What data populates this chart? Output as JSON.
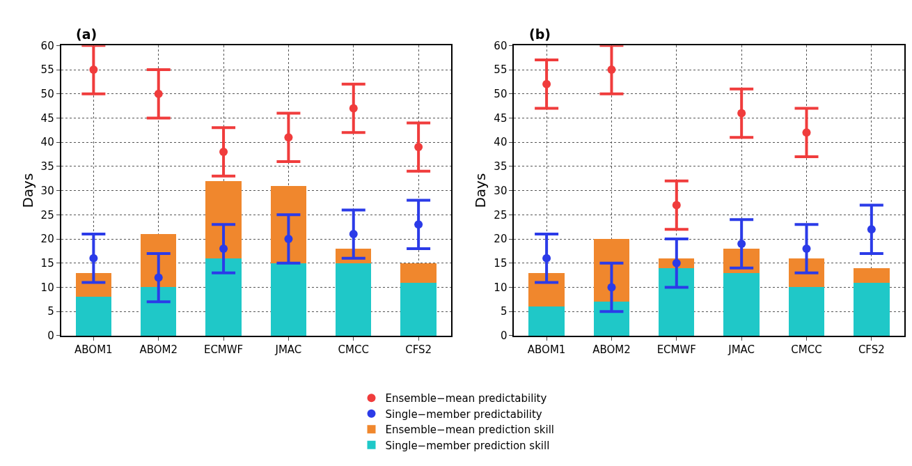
{
  "chart_data": [
    {
      "type": "bar",
      "title": "(a)",
      "ylabel": "Days",
      "categories": [
        "ABOM1",
        "ABOM2",
        "ECMWF",
        "JMAC",
        "CMCC",
        "CFS2"
      ],
      "stacked": true,
      "ylim": [
        0,
        60
      ],
      "yticks": [
        0,
        5,
        10,
        15,
        20,
        25,
        30,
        35,
        40,
        45,
        50,
        55,
        60
      ],
      "grid": true,
      "legend": "bottom",
      "series": [
        {
          "name": "Single−member prediction skill",
          "color": "#1fc8c8",
          "values": [
            8,
            10,
            16,
            15,
            15,
            11
          ]
        },
        {
          "name": "Ensemble−mean prediction skill",
          "color": "#f0872d",
          "values": [
            5,
            11,
            16,
            16,
            3,
            4
          ]
        },
        {
          "name": "Single−member predictability",
          "color": "#2b3be8",
          "type": "scatter",
          "marker": "circle",
          "values": [
            16,
            12,
            18,
            20,
            21,
            23
          ],
          "errors": [
            5,
            5,
            5,
            5,
            5,
            5
          ]
        },
        {
          "name": "Ensemble−mean predictability",
          "color": "#f03c3c",
          "type": "scatter",
          "marker": "circle",
          "values": [
            55,
            50,
            38,
            41,
            47,
            39
          ],
          "errors": [
            5,
            5,
            5,
            5,
            5,
            5
          ]
        }
      ]
    },
    {
      "type": "bar",
      "title": "(b)",
      "ylabel": "Days",
      "categories": [
        "ABOM1",
        "ABOM2",
        "ECMWF",
        "JMAC",
        "CMCC",
        "CFS2"
      ],
      "stacked": true,
      "ylim": [
        0,
        60
      ],
      "yticks": [
        0,
        5,
        10,
        15,
        20,
        25,
        30,
        35,
        40,
        45,
        50,
        55,
        60
      ],
      "grid": true,
      "legend": "bottom",
      "series": [
        {
          "name": "Single−member prediction skill",
          "color": "#1fc8c8",
          "values": [
            6,
            7,
            14,
            13,
            10,
            11
          ]
        },
        {
          "name": "Ensemble−mean prediction skill",
          "color": "#f0872d",
          "values": [
            7,
            13,
            2,
            5,
            6,
            3
          ]
        },
        {
          "name": "Single−member predictability",
          "color": "#2b3be8",
          "type": "scatter",
          "marker": "circle",
          "values": [
            16,
            10,
            15,
            19,
            18,
            22
          ],
          "errors": [
            5,
            5,
            5,
            5,
            5,
            5
          ]
        },
        {
          "name": "Ensemble−mean predictability",
          "color": "#f03c3c",
          "type": "scatter",
          "marker": "circle",
          "values": [
            52,
            55,
            27,
            46,
            42,
            null
          ],
          "errors": [
            5,
            5,
            5,
            5,
            5,
            null
          ]
        }
      ]
    }
  ]
}
